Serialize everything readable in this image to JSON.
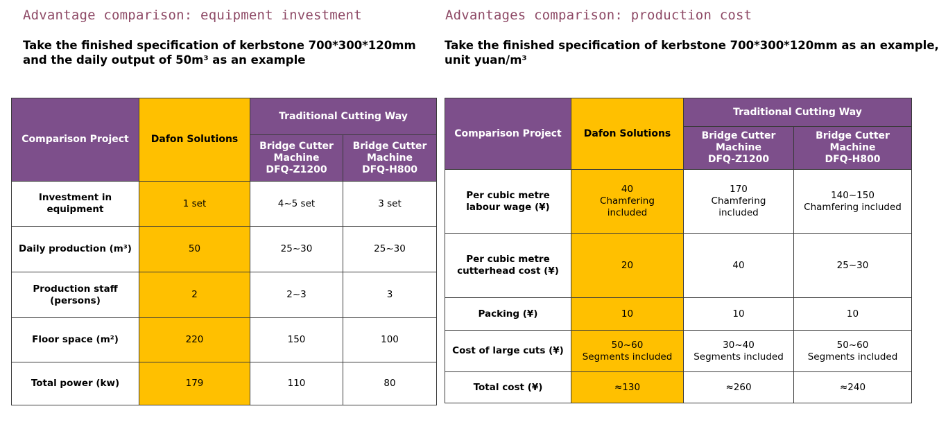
{
  "left": {
    "title": "Advantage comparison: equipment investment",
    "subtitle_lines": [
      "Take the finished specification of kerbstone 700*300*120mm",
      "and the daily output of 50m³ as an example"
    ],
    "header": {
      "project": "Comparison Project",
      "dafon": "Dafon Solutions",
      "traditional": "Traditional Cutting Way",
      "machine1": [
        "Bridge Cutter",
        "Machine",
        "DFQ-Z1200"
      ],
      "machine2": [
        "Bridge Cutter",
        "Machine",
        "DFQ-H800"
      ]
    },
    "rows": [
      {
        "label": [
          "Investment in",
          "equipment"
        ],
        "dafon": [
          "1 set"
        ],
        "m1": [
          "4~5 set"
        ],
        "m2": [
          "3 set"
        ]
      },
      {
        "label": [
          "Daily production (m³)"
        ],
        "dafon": [
          "50"
        ],
        "m1": [
          "25~30"
        ],
        "m2": [
          "25~30"
        ]
      },
      {
        "label": [
          "Production staff",
          "(persons)"
        ],
        "dafon": [
          "2"
        ],
        "m1": [
          "2~3"
        ],
        "m2": [
          "3"
        ]
      },
      {
        "label": [
          "Floor space (m²)"
        ],
        "dafon": [
          "220"
        ],
        "m1": [
          "150"
        ],
        "m2": [
          "100"
        ]
      },
      {
        "label": [
          "Total power (kw)"
        ],
        "dafon": [
          "179"
        ],
        "m1": [
          "110"
        ],
        "m2": [
          "80"
        ]
      }
    ]
  },
  "right": {
    "title": "Advantages comparison: production cost",
    "subtitle_lines": [
      "Take the finished specification of kerbstone 700*300*120mm as an example,",
      "unit yuan/m³"
    ],
    "header": {
      "project": "Comparison Project",
      "dafon": "Dafon Solutions",
      "traditional": "Traditional Cutting Way",
      "machine1": [
        "Bridge Cutter",
        "Machine",
        "DFQ-Z1200"
      ],
      "machine2": [
        "Bridge Cutter",
        "Machine",
        "DFQ-H800"
      ]
    },
    "rows": [
      {
        "label": [
          "Per cubic metre",
          "labour wage (¥)"
        ],
        "dafon": [
          "40",
          "Chamfering",
          "included"
        ],
        "m1": [
          "170",
          "Chamfering",
          "included"
        ],
        "m2": [
          "140~150",
          "Chamfering included"
        ]
      },
      {
        "label": [
          "Per cubic metre",
          "cutterhead cost (¥)"
        ],
        "dafon": [
          "20"
        ],
        "m1": [
          "40"
        ],
        "m2": [
          "25~30"
        ]
      },
      {
        "label": [
          "Packing (¥)"
        ],
        "dafon": [
          "10"
        ],
        "m1": [
          "10"
        ],
        "m2": [
          "10"
        ]
      },
      {
        "label": [
          "Cost of large cuts (¥)"
        ],
        "dafon": [
          "50~60",
          "Segments included"
        ],
        "m1": [
          "30~40",
          "Segments included"
        ],
        "m2": [
          "50~60",
          "Segments included"
        ]
      },
      {
        "label": [
          "Total cost (¥)"
        ],
        "dafon": [
          "≈130"
        ],
        "m1": [
          "≈260"
        ],
        "m2": [
          "≈240"
        ]
      }
    ]
  }
}
